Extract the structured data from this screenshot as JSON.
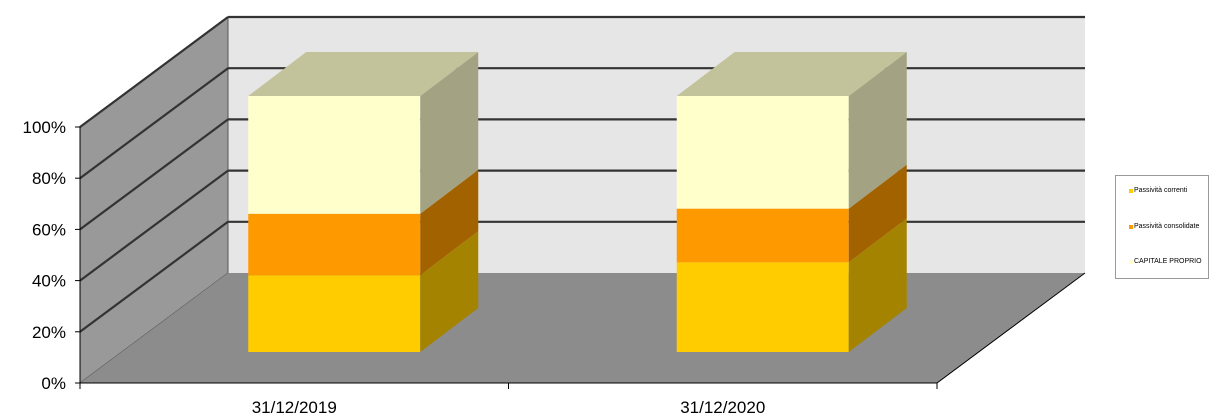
{
  "chart_data": {
    "type": "bar",
    "stacked": true,
    "three_d": true,
    "categories": [
      "31/12/2019",
      "31/12/2020"
    ],
    "series": [
      {
        "name": "CAPITALE PROPRIO",
        "values": [
          30,
          35
        ],
        "color": "#FFCC00"
      },
      {
        "name": "Passività consolidate",
        "values": [
          24,
          21
        ],
        "color": "#FF9900"
      },
      {
        "name": "Passività correnti",
        "values": [
          46,
          44
        ],
        "color": "#FFFFCC"
      }
    ],
    "y_ticks": [
      "0%",
      "20%",
      "40%",
      "60%",
      "80%",
      "100%"
    ],
    "ylim": [
      0,
      100
    ],
    "grid": true,
    "legend_position": "right",
    "legend_order": [
      "Passività correnti",
      "Passività consolidate",
      "CAPITALE PROPRIO"
    ]
  },
  "colors": {
    "floor": "#8c8c8c",
    "side_wall": "#999999",
    "back_wall": "#e6e6e6",
    "gridline": "#333333"
  }
}
